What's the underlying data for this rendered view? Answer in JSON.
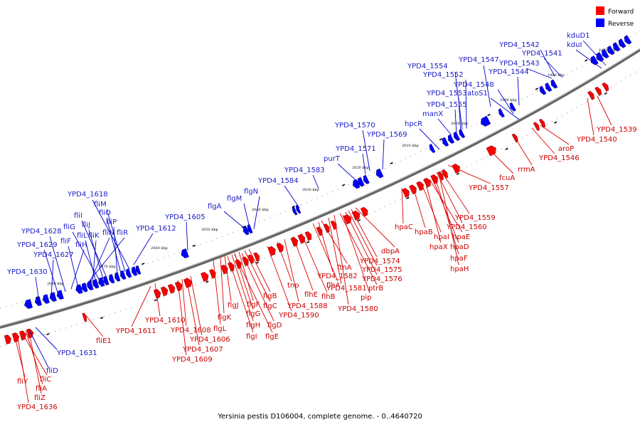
{
  "legend": {
    "forward_label": "Forward",
    "reverse_label": "Reverse",
    "forward_color": "#ff0000",
    "reverse_color": "#0000ff"
  },
  "caption": "Yersinia pestis D106004, complete genome. - 0..4640720",
  "colors": {
    "forward": "#ff0000",
    "reverse": "#0000ff",
    "backbone": "#555555"
  },
  "tick_labels": [
    "1970 kbp",
    "1980 kbp",
    "1990 kbp",
    "2000 kbp",
    "2010 kbp",
    "2020 kbp",
    "2030 kbp",
    "2040 kbp",
    "2050 kbp",
    "2060 kbp",
    "2070 kbp",
    "2080 kbp"
  ],
  "reverse_labels": [
    "kduD1",
    "kduI",
    "YPD4_1542",
    "YPD4_1541",
    "YPD4_1543",
    "YPD4_1547",
    "YPD4_1544",
    "YPD4_1554",
    "YPD4_1552",
    "YPD4_1548",
    "YPD4_1553",
    "atoS1",
    "YPD4_1555",
    "manX",
    "hpcR",
    "YPD4_1570",
    "YPD4_1569",
    "YPD4_1571",
    "purT",
    "YPD4_1583",
    "YPD4_1584",
    "flgN",
    "flgM",
    "flgA",
    "YPD4_1605",
    "YPD4_1612",
    "YPD4_1618",
    "fliM",
    "fliO",
    "fliP",
    "fliI",
    "fliJ",
    "fliG",
    "fliL",
    "fliK",
    "fliN",
    "fliR",
    "fliF",
    "fliH",
    "YPD4_1628",
    "YPD4_1629",
    "YPD4_1627",
    "YPD4_1630",
    "YPD4_1631",
    "fliD"
  ],
  "forward_labels": [
    "YPD4_1539",
    "YPD4_1540",
    "aroP",
    "YPD4_1546",
    "rrmA",
    "fcuA",
    "YPD4_1557",
    "YPD4_1559",
    "YPD4_1560",
    "hpaC",
    "hpaB",
    "hpaI",
    "hpaE",
    "hpaX",
    "hpaD",
    "hpaF",
    "hpaH",
    "dbpA",
    "YPD4_1574",
    "YPD4_1575",
    "YPD4_1576",
    "ftnA",
    "YPD4_1582",
    "flhA",
    "ptrB",
    "YPD4_1581",
    "pip",
    "YPD4_1580",
    "tnp",
    "flhE",
    "flhB",
    "YPD4_1588",
    "YPD4_1590",
    "flgB",
    "flgC",
    "flgJ",
    "flgF",
    "flgK",
    "flgG",
    "flgL",
    "flgH",
    "flgD",
    "flgI",
    "flgE",
    "YPD4_1610",
    "YPD4_1611",
    "YPD4_1608",
    "YPD4_1606",
    "YPD4_1607",
    "YPD4_1609",
    "fliE1",
    "fliY",
    "fliC",
    "fliA",
    "fliZ",
    "YPD4_1636"
  ]
}
